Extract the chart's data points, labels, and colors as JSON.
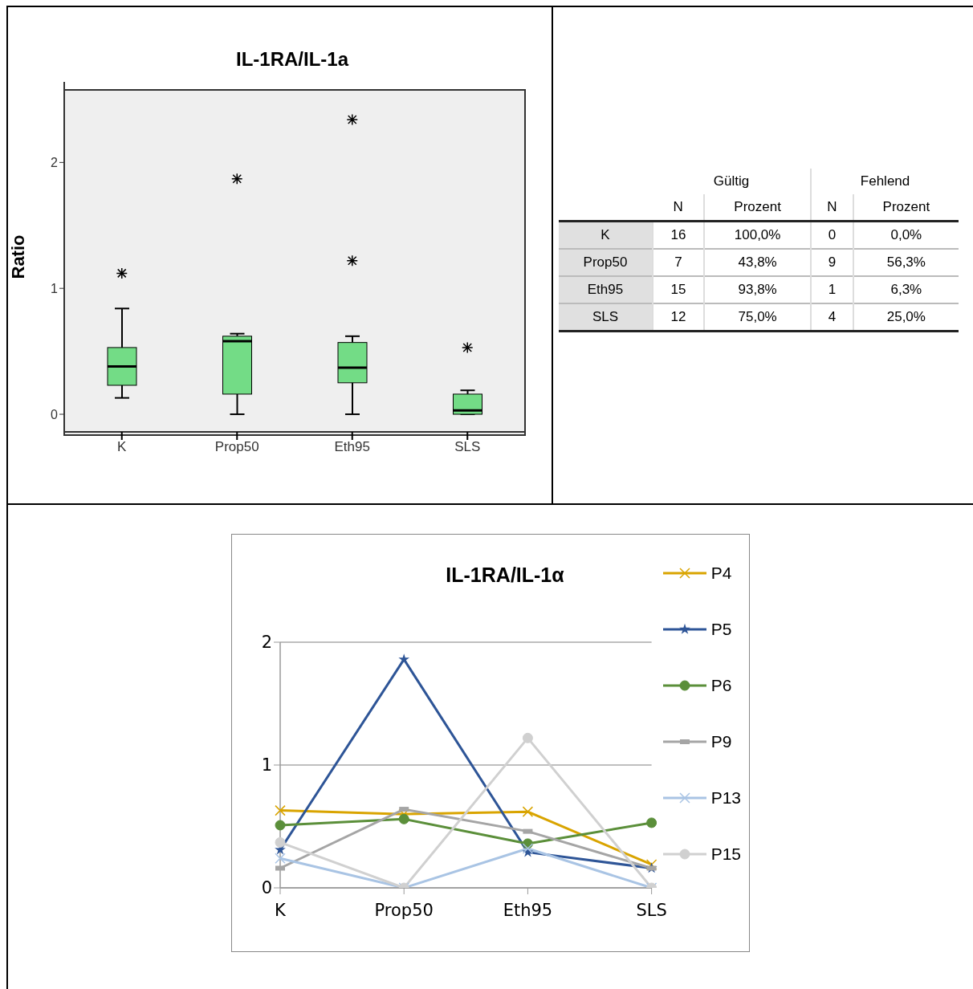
{
  "chart_data": [
    {
      "type": "box",
      "title": "IL-1RA/IL-1a",
      "ylabel": "Ratio",
      "categories": [
        "K",
        "Prop50",
        "Eth95",
        "SLS"
      ],
      "color": "#73dc86",
      "ylim": [
        -0.14,
        2.64
      ],
      "yticks": [
        0,
        1,
        2
      ],
      "grid": false,
      "marker": "star",
      "boxes": [
        {
          "low": 0.13,
          "q1": 0.23,
          "median": 0.38,
          "q3": 0.53,
          "high": 0.84,
          "outliers": [
            1.12
          ]
        },
        {
          "low": 0,
          "q1": 0.16,
          "median": 0.58,
          "q3": 0.62,
          "high": 0.64,
          "outliers": [
            1.87
          ]
        },
        {
          "low": 0,
          "q1": 0.25,
          "median": 0.37,
          "q3": 0.57,
          "high": 0.62,
          "outliers": [
            1.22,
            2.34
          ]
        },
        {
          "low": 0,
          "q1": 0,
          "median": 0.03,
          "q3": 0.16,
          "high": 0.19,
          "outliers": [
            0.53
          ]
        }
      ]
    },
    {
      "type": "other",
      "categories": [
        "K",
        "Prop50",
        "Eth95",
        "SLS"
      ],
      "annotations": [
        "Gültig",
        "Fehlend",
        "N",
        "Prozent",
        "N",
        "Prozent"
      ],
      "data_labels": true,
      "series": [
        {
          "values": [
            16,
            7,
            15,
            12
          ]
        },
        {
          "values": [
            100,
            43.8,
            93.8,
            75
          ],
          "value_labels": [
            "100,0%",
            "43,8%",
            "93,8%",
            "75,0%"
          ]
        },
        {
          "values": [
            0,
            9,
            1,
            4
          ]
        },
        {
          "values": [
            0,
            56.3,
            6.3,
            25
          ],
          "value_labels": [
            "0,0%",
            "56,3%",
            "6,3%",
            "25,0%"
          ]
        }
      ]
    },
    {
      "type": "line",
      "title": "IL-1RA/IL-1α",
      "categories": [
        "K",
        "Prop50",
        "Eth95",
        "SLS"
      ],
      "ylim": [
        0,
        2
      ],
      "yticks": [
        0,
        1,
        2
      ],
      "grid": "y",
      "legend": "right",
      "series": [
        {
          "name": "P4",
          "color": "#d9a400",
          "marker": "cross",
          "values": [
            0.63,
            0.6,
            0.62,
            0.19
          ]
        },
        {
          "name": "P5",
          "color": "#2e5597",
          "marker": "star",
          "values": [
            0.31,
            1.86,
            0.29,
            0.16
          ]
        },
        {
          "name": "P6",
          "color": "#5b8f3a",
          "marker": "circle",
          "values": [
            0.51,
            0.56,
            0.36,
            0.53
          ]
        },
        {
          "name": "P9",
          "color": "#a5a5a5",
          "marker": "square",
          "values": [
            0.16,
            0.64,
            0.46,
            0.16
          ]
        },
        {
          "name": "P13",
          "color": "#a9c4e4",
          "marker": "cross",
          "values": [
            0.24,
            0,
            0.32,
            0
          ]
        },
        {
          "name": "P15",
          "color": "#d0d0d0",
          "marker": "circle",
          "values": [
            0.37,
            0,
            1.22,
            0
          ]
        }
      ]
    }
  ]
}
